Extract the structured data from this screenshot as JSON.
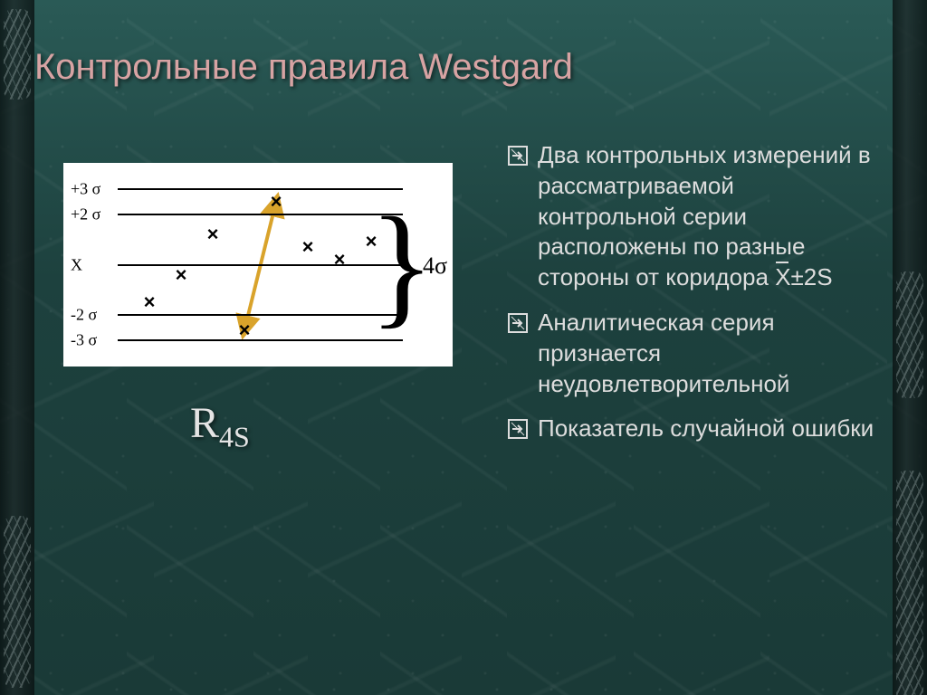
{
  "title": "Контрольные правила Westgard",
  "rule_label_main": "R",
  "rule_label_sub": "4S",
  "bullets": [
    {
      "text": "Два контрольных измерений в рассматриваемой контрольной серии расположены по разные стороны от коридора",
      "tail_xbar": "X",
      "tail_after": "±2S"
    },
    {
      "text": "Аналитическая серия признается неудовлетворительной"
    },
    {
      "text": "Показатель случайной ошибки"
    }
  ],
  "chart": {
    "type": "levey-jennings",
    "background": "#ffffff",
    "line_color": "#000000",
    "point_color": "#000000",
    "arrow_color": "#d9a32b",
    "levels": [
      {
        "label": "+3 σ",
        "sigma": 3
      },
      {
        "label": "+2 σ",
        "sigma": 2
      },
      {
        "label": "X",
        "sigma": 0
      },
      {
        "label": "-2 σ",
        "sigma": -2
      },
      {
        "label": "-3 σ",
        "sigma": -3
      }
    ],
    "y_range_sigma": [
      -3.5,
      3.5
    ],
    "points_sigma": [
      {
        "x": 1,
        "y": -1.5
      },
      {
        "x": 2,
        "y": -0.4
      },
      {
        "x": 3,
        "y": 1.2
      },
      {
        "x": 4,
        "y": -2.6
      },
      {
        "x": 5,
        "y": 2.5
      },
      {
        "x": 6,
        "y": 0.7
      },
      {
        "x": 7,
        "y": 0.2
      },
      {
        "x": 8,
        "y": 0.9
      }
    ],
    "x_count": 9,
    "arrow_from_index": 3,
    "arrow_to_index": 4,
    "brace_label": "4σ",
    "brace_from_sigma": 2,
    "brace_to_sigma": -2
  },
  "colors": {
    "title": "#d7a3a3",
    "body_text": "#dddddd",
    "slide_bg_top": "#2a5a56",
    "slide_bg_bottom": "#1a3a37"
  },
  "bullet_icon": "boxed-arrow"
}
